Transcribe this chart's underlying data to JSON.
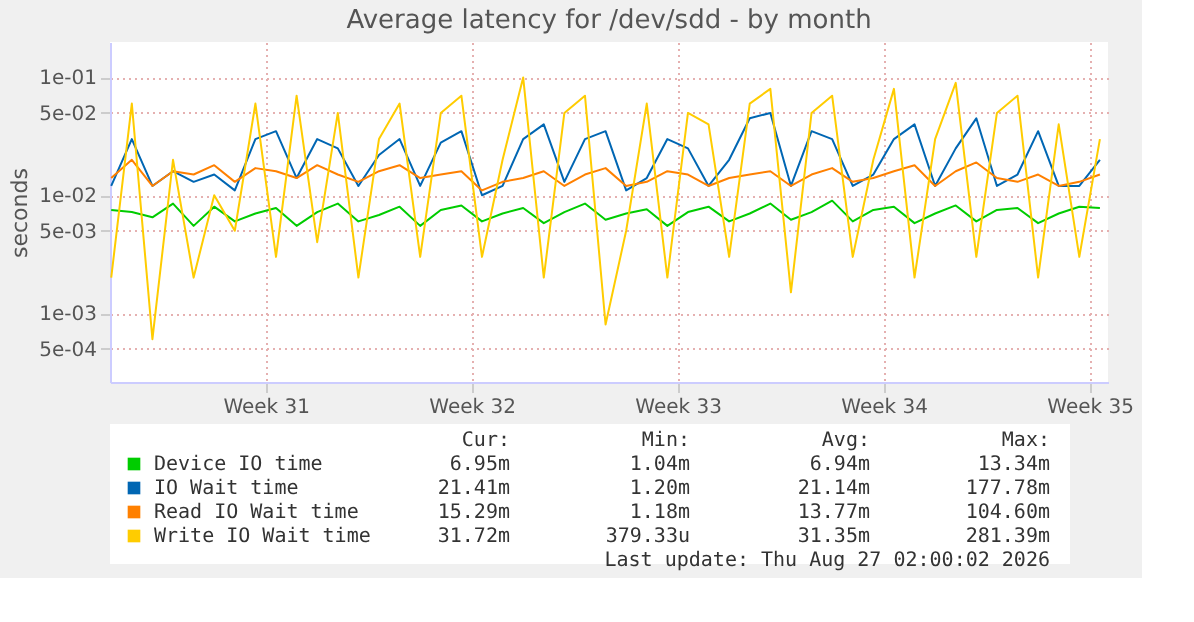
{
  "chart_data": {
    "type": "line",
    "title": "Average latency for /dev/sdd - by month",
    "ylabel": "seconds",
    "log": "y",
    "grid": true,
    "legend": "bottom",
    "marker": "none",
    "line_style": "solid",
    "x": [
      "2026-07-21T18:00",
      "2026-07-22T10:48",
      "2026-07-23T03:36",
      "2026-07-23T20:24",
      "2026-07-24T13:12",
      "2026-07-25T06:00",
      "2026-07-25T22:48",
      "2026-07-26T15:36",
      "2026-07-27T08:24",
      "2026-07-28T01:12",
      "2026-07-28T18:00",
      "2026-07-29T10:48",
      "2026-07-30T03:36",
      "2026-07-30T20:24",
      "2026-07-31T13:12",
      "2026-08-01T06:00",
      "2026-08-01T22:48",
      "2026-08-02T15:36",
      "2026-08-03T08:24",
      "2026-08-04T01:12",
      "2026-08-04T18:00",
      "2026-08-05T10:48",
      "2026-08-06T03:36",
      "2026-08-06T20:24",
      "2026-08-07T13:12",
      "2026-08-08T06:00",
      "2026-08-08T22:48",
      "2026-08-09T15:36",
      "2026-08-10T08:24",
      "2026-08-11T01:12",
      "2026-08-11T18:00",
      "2026-08-12T10:48",
      "2026-08-13T03:36",
      "2026-08-13T20:24",
      "2026-08-14T13:12",
      "2026-08-15T06:00",
      "2026-08-15T22:48",
      "2026-08-16T15:36",
      "2026-08-17T08:24",
      "2026-08-18T01:12",
      "2026-08-18T18:00",
      "2026-08-19T10:48",
      "2026-08-20T03:36",
      "2026-08-20T20:24",
      "2026-08-21T13:12",
      "2026-08-22T06:00",
      "2026-08-22T22:48",
      "2026-08-23T15:36",
      "2026-08-24T08:24"
    ],
    "xlim": [
      "2026-07-21T17:00",
      "2026-08-24T15:00"
    ],
    "xticks": [
      {
        "value": "2026-07-27",
        "label": "Week 31"
      },
      {
        "value": "2026-08-03",
        "label": "Week 32"
      },
      {
        "value": "2026-08-10",
        "label": "Week 33"
      },
      {
        "value": "2026-08-17",
        "label": "Week 34"
      },
      {
        "value": "2026-08-24",
        "label": "Week 35"
      }
    ],
    "ylim": [
      0.00026,
      0.2
    ],
    "yticks": [
      {
        "value": 0.0005,
        "label": "5e-04"
      },
      {
        "value": 0.001,
        "label": "1e-03"
      },
      {
        "value": 0.005,
        "label": "5e-03"
      },
      {
        "value": 0.01,
        "label": "1e-02"
      },
      {
        "value": 0.05,
        "label": "5e-02"
      },
      {
        "value": 0.1,
        "label": "1e-01"
      }
    ],
    "series": [
      {
        "name": "Device IO time",
        "color": "#00cc00",
        "values": [
          0.0075,
          0.0072,
          0.0065,
          0.0085,
          0.0055,
          0.008,
          0.006,
          0.007,
          0.0078,
          0.0055,
          0.0072,
          0.0085,
          0.006,
          0.0068,
          0.008,
          0.0055,
          0.0075,
          0.0082,
          0.006,
          0.007,
          0.0078,
          0.0058,
          0.0072,
          0.0085,
          0.0062,
          0.007,
          0.0076,
          0.0055,
          0.0072,
          0.008,
          0.006,
          0.007,
          0.0085,
          0.0062,
          0.0072,
          0.009,
          0.006,
          0.0075,
          0.008,
          0.0058,
          0.007,
          0.0082,
          0.006,
          0.0075,
          0.0078,
          0.0058,
          0.007,
          0.008,
          0.0078
        ]
      },
      {
        "name": "IO Wait time",
        "color": "#0066b3",
        "values": [
          0.012,
          0.03,
          0.012,
          0.016,
          0.013,
          0.015,
          0.011,
          0.03,
          0.035,
          0.014,
          0.03,
          0.025,
          0.012,
          0.022,
          0.03,
          0.012,
          0.028,
          0.035,
          0.01,
          0.012,
          0.03,
          0.04,
          0.013,
          0.03,
          0.035,
          0.011,
          0.014,
          0.03,
          0.025,
          0.012,
          0.02,
          0.045,
          0.05,
          0.012,
          0.035,
          0.03,
          0.012,
          0.015,
          0.03,
          0.04,
          0.012,
          0.025,
          0.045,
          0.012,
          0.015,
          0.035,
          0.012,
          0.012,
          0.02
        ]
      },
      {
        "name": "Read IO Wait time",
        "color": "#ff8000",
        "values": [
          0.014,
          0.02,
          0.012,
          0.016,
          0.015,
          0.018,
          0.013,
          0.017,
          0.016,
          0.014,
          0.018,
          0.015,
          0.013,
          0.016,
          0.018,
          0.014,
          0.015,
          0.016,
          0.011,
          0.013,
          0.014,
          0.016,
          0.012,
          0.015,
          0.017,
          0.012,
          0.013,
          0.016,
          0.015,
          0.012,
          0.014,
          0.015,
          0.016,
          0.012,
          0.015,
          0.017,
          0.013,
          0.014,
          0.016,
          0.018,
          0.012,
          0.016,
          0.019,
          0.014,
          0.013,
          0.015,
          0.012,
          0.013,
          0.015
        ]
      },
      {
        "name": "Write IO Wait time",
        "color": "#ffcc00",
        "values": [
          0.002,
          0.06,
          0.0006,
          0.02,
          0.002,
          0.01,
          0.005,
          0.06,
          0.003,
          0.07,
          0.004,
          0.05,
          0.002,
          0.03,
          0.06,
          0.003,
          0.05,
          0.07,
          0.003,
          0.02,
          0.1,
          0.002,
          0.05,
          0.07,
          0.0008,
          0.005,
          0.06,
          0.002,
          0.05,
          0.04,
          0.003,
          0.06,
          0.08,
          0.0015,
          0.05,
          0.07,
          0.003,
          0.02,
          0.08,
          0.002,
          0.03,
          0.09,
          0.003,
          0.05,
          0.07,
          0.002,
          0.04,
          0.003,
          0.03
        ]
      }
    ],
    "annotations": [
      "Cur:",
      "Min:",
      "Avg:",
      "Max:",
      "6.95m",
      "1.04m",
      "6.94m",
      "13.34m",
      "21.41m",
      "1.20m",
      "21.14m",
      "177.78m",
      "15.29m",
      "1.18m",
      "13.77m",
      "104.60m",
      "31.72m",
      "379.33u",
      "31.35m",
      "281.39m",
      "Last update: Thu Aug 27 02:00:02 2026"
    ]
  }
}
